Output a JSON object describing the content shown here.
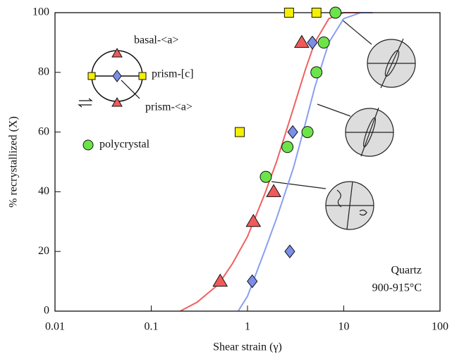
{
  "chart_data": {
    "type": "scatter",
    "xlabel": "Shear strain (γ)",
    "ylabel": "% recrystallized (X)",
    "xscale": "log",
    "xlim": [
      0.01,
      100
    ],
    "xticks": [
      0.01,
      0.1,
      1,
      10,
      100
    ],
    "ylim": [
      0,
      100
    ],
    "yticks": [
      0,
      20,
      40,
      60,
      80,
      100
    ],
    "series": [
      {
        "name": "basal-<a>",
        "marker": "triangle",
        "color": "#f05a5a",
        "x": [
          0.52,
          1.15,
          1.87,
          3.66
        ],
        "values": [
          10,
          30,
          40,
          90
        ]
      },
      {
        "name": "prism-<a>",
        "marker": "diamond",
        "color": "#7b8ee8",
        "x": [
          1.12,
          2.75,
          2.95,
          4.72
        ],
        "values": [
          10,
          20,
          60,
          90
        ]
      },
      {
        "name": "prism-[c]",
        "marker": "square",
        "color": "#f5f000",
        "x": [
          0.83,
          2.7,
          5.2
        ],
        "values": [
          60,
          100,
          100
        ]
      },
      {
        "name": "polycrystal",
        "marker": "circle",
        "color": "#6de34a",
        "x": [
          1.55,
          2.6,
          4.2,
          5.2,
          6.2,
          8.2
        ],
        "values": [
          45,
          55,
          60,
          80,
          90,
          100
        ]
      }
    ],
    "curves": [
      {
        "color": "#f06060",
        "x": [
          0.2,
          0.3,
          0.5,
          0.7,
          1,
          1.5,
          2,
          3,
          4,
          5,
          7,
          10,
          20
        ],
        "values": [
          0,
          3,
          9,
          16,
          25,
          39,
          50,
          68,
          81,
          90,
          98,
          100,
          100
        ]
      },
      {
        "color": "#8a9ef0",
        "x": [
          0.8,
          1,
          1.5,
          2,
          3,
          4,
          5,
          7,
          10,
          15,
          20
        ],
        "values": [
          0,
          5,
          20,
          31,
          48,
          63,
          75,
          90,
          98,
          100,
          100
        ]
      }
    ],
    "annotations": [
      "Quartz",
      "900-915°C"
    ]
  }
}
